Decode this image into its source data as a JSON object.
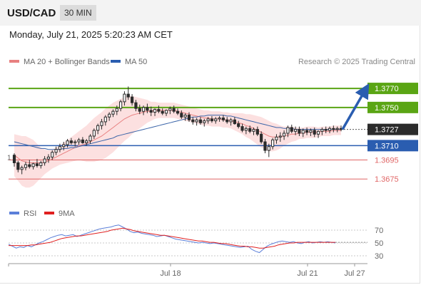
{
  "header": {
    "symbol": "USD/CAD",
    "timeframe": "30 MIN",
    "timestamp": "Monday, July 21, 2025 5:20:23 AM CET"
  },
  "colors": {
    "resistance": "#5aa514",
    "support": "#2a5db0",
    "secondary_level": "#e06666",
    "last_price": "#2b2b2b",
    "ma20": "#e88080",
    "bollinger_fill": "#fbdada",
    "ma50": "#3a64a8",
    "candle": "#2b2b2b",
    "arrow": "#2a5db0",
    "rsi": "#5b7fd9",
    "rsi_ma": "#e02020"
  },
  "chart_data": [
    {
      "type": "candlestick",
      "legend": [
        {
          "name": "MA 20 + Bollinger Bands",
          "color": "#e88080"
        },
        {
          "name": "MA 50",
          "color": "#2a5db0"
        }
      ],
      "source": "Research © 2025 Trading Central",
      "ylim": [
        1.3652,
        1.3788
      ],
      "x_ticks": [
        "Jul 18",
        "Jul 21",
        "Jul 27"
      ],
      "levels": [
        {
          "value": 1.377,
          "label": "1.3770",
          "kind": "resistance"
        },
        {
          "value": 1.375,
          "label": "1.3750",
          "kind": "resistance"
        },
        {
          "value": 1.3727,
          "label": "1.3727",
          "kind": "last"
        },
        {
          "value": 1.371,
          "label": "1.3710",
          "kind": "support"
        },
        {
          "value": 1.3695,
          "label": "1.3695",
          "kind": "minor"
        },
        {
          "value": 1.3675,
          "label": "1.3675",
          "kind": "minor"
        }
      ],
      "forecast_arrow": {
        "from": 1.3727,
        "to": 1.377
      },
      "candles": [
        [
          1.37,
          1.3702,
          1.3688,
          1.3692
        ],
        [
          1.3692,
          1.3694,
          1.3682,
          1.3685
        ],
        [
          1.3685,
          1.3689,
          1.368,
          1.3687
        ],
        [
          1.3687,
          1.3693,
          1.3684,
          1.369
        ],
        [
          1.369,
          1.3695,
          1.3686,
          1.3688
        ],
        [
          1.3688,
          1.3692,
          1.3685,
          1.3691
        ],
        [
          1.3691,
          1.3696,
          1.3687,
          1.3689
        ],
        [
          1.3689,
          1.3694,
          1.3686,
          1.3692
        ],
        [
          1.3692,
          1.3699,
          1.3689,
          1.3696
        ],
        [
          1.3696,
          1.3701,
          1.3692,
          1.3698
        ],
        [
          1.3698,
          1.3705,
          1.3695,
          1.3703
        ],
        [
          1.3703,
          1.3709,
          1.37,
          1.3706
        ],
        [
          1.3706,
          1.3712,
          1.3703,
          1.3709
        ],
        [
          1.3709,
          1.3714,
          1.3705,
          1.3711
        ],
        [
          1.3711,
          1.3717,
          1.3708,
          1.3715
        ],
        [
          1.3715,
          1.3718,
          1.3711,
          1.3713
        ],
        [
          1.3713,
          1.3716,
          1.3709,
          1.3714
        ],
        [
          1.3714,
          1.3718,
          1.3711,
          1.3716
        ],
        [
          1.3716,
          1.3719,
          1.3712,
          1.3713
        ],
        [
          1.3713,
          1.3717,
          1.371,
          1.3715
        ],
        [
          1.3715,
          1.3722,
          1.3712,
          1.372
        ],
        [
          1.372,
          1.3728,
          1.3717,
          1.3726
        ],
        [
          1.3726,
          1.3733,
          1.3722,
          1.3731
        ],
        [
          1.3731,
          1.3738,
          1.3727,
          1.3735
        ],
        [
          1.3735,
          1.3742,
          1.3731,
          1.374
        ],
        [
          1.374,
          1.3745,
          1.3736,
          1.3743
        ],
        [
          1.3743,
          1.3748,
          1.374,
          1.3746
        ],
        [
          1.3746,
          1.3752,
          1.3742,
          1.3749
        ],
        [
          1.3749,
          1.3758,
          1.3746,
          1.3756
        ],
        [
          1.3756,
          1.3767,
          1.3752,
          1.3764
        ],
        [
          1.3764,
          1.3772,
          1.3758,
          1.3761
        ],
        [
          1.3761,
          1.3764,
          1.3752,
          1.3755
        ],
        [
          1.3755,
          1.3758,
          1.3746,
          1.3749
        ],
        [
          1.3749,
          1.3753,
          1.3743,
          1.3746
        ],
        [
          1.3746,
          1.3752,
          1.3742,
          1.375
        ],
        [
          1.375,
          1.3754,
          1.3744,
          1.3747
        ],
        [
          1.3747,
          1.3751,
          1.3741,
          1.3745
        ],
        [
          1.3745,
          1.3749,
          1.3741,
          1.3748
        ],
        [
          1.3748,
          1.3752,
          1.3744,
          1.3746
        ],
        [
          1.3746,
          1.3749,
          1.3742,
          1.3744
        ],
        [
          1.3744,
          1.3748,
          1.3741,
          1.3747
        ],
        [
          1.3747,
          1.3751,
          1.3743,
          1.3749
        ],
        [
          1.3749,
          1.3752,
          1.3744,
          1.3746
        ],
        [
          1.3746,
          1.3749,
          1.3742,
          1.3744
        ],
        [
          1.3744,
          1.3747,
          1.3738,
          1.374
        ],
        [
          1.374,
          1.3744,
          1.3736,
          1.3742
        ],
        [
          1.3742,
          1.3745,
          1.3735,
          1.3737
        ],
        [
          1.3737,
          1.374,
          1.3732,
          1.3735
        ],
        [
          1.3735,
          1.3739,
          1.3731,
          1.3737
        ],
        [
          1.3737,
          1.374,
          1.3732,
          1.3734
        ],
        [
          1.3734,
          1.3738,
          1.373,
          1.3736
        ],
        [
          1.3736,
          1.374,
          1.3733,
          1.3738
        ],
        [
          1.3738,
          1.3741,
          1.3734,
          1.3736
        ],
        [
          1.3736,
          1.374,
          1.3733,
          1.3738
        ],
        [
          1.3738,
          1.3741,
          1.3735,
          1.3739
        ],
        [
          1.3739,
          1.3742,
          1.3735,
          1.3737
        ],
        [
          1.3737,
          1.374,
          1.3733,
          1.3735
        ],
        [
          1.3735,
          1.3739,
          1.3731,
          1.3737
        ],
        [
          1.3737,
          1.374,
          1.3732,
          1.3733
        ],
        [
          1.3733,
          1.3736,
          1.3728,
          1.373
        ],
        [
          1.373,
          1.3733,
          1.3724,
          1.3726
        ],
        [
          1.3726,
          1.373,
          1.3722,
          1.3728
        ],
        [
          1.3728,
          1.3731,
          1.3723,
          1.3725
        ],
        [
          1.3725,
          1.3729,
          1.3721,
          1.3727
        ],
        [
          1.3727,
          1.373,
          1.372,
          1.3722
        ],
        [
          1.3722,
          1.3725,
          1.3712,
          1.3714
        ],
        [
          1.3714,
          1.3717,
          1.3702,
          1.3705
        ],
        [
          1.3705,
          1.3712,
          1.3698,
          1.3709
        ],
        [
          1.3709,
          1.3718,
          1.3706,
          1.3716
        ],
        [
          1.3716,
          1.3722,
          1.3712,
          1.3719
        ],
        [
          1.3719,
          1.3724,
          1.3714,
          1.372
        ],
        [
          1.372,
          1.3726,
          1.3716,
          1.3723
        ],
        [
          1.3723,
          1.3731,
          1.3719,
          1.3729
        ],
        [
          1.3729,
          1.3732,
          1.3723,
          1.3725
        ],
        [
          1.3725,
          1.373,
          1.3721,
          1.3727
        ],
        [
          1.3727,
          1.373,
          1.372,
          1.3723
        ],
        [
          1.3723,
          1.3728,
          1.3719,
          1.3726
        ],
        [
          1.3726,
          1.3729,
          1.3721,
          1.3724
        ],
        [
          1.3724,
          1.3728,
          1.372,
          1.3726
        ],
        [
          1.3726,
          1.3729,
          1.3719,
          1.3722
        ],
        [
          1.3722,
          1.3726,
          1.3718,
          1.3725
        ],
        [
          1.3725,
          1.3729,
          1.3721,
          1.3727
        ],
        [
          1.3727,
          1.373,
          1.3723,
          1.3726
        ],
        [
          1.3726,
          1.373,
          1.3723,
          1.3728
        ],
        [
          1.3728,
          1.3731,
          1.3724,
          1.3727
        ],
        [
          1.3727,
          1.373,
          1.3724,
          1.3728
        ],
        [
          1.3728,
          1.3731,
          1.3725,
          1.3727
        ]
      ],
      "ma20": [
        1.37,
        1.3697,
        1.3694,
        1.3693,
        1.3692,
        1.3692,
        1.3692,
        1.3692,
        1.3693,
        1.3694,
        1.3696,
        1.3698,
        1.37,
        1.3702,
        1.3704,
        1.3706,
        1.3708,
        1.371,
        1.3711,
        1.3712,
        1.3714,
        1.3716,
        1.3718,
        1.372,
        1.3723,
        1.3726,
        1.3729,
        1.3732,
        1.3735,
        1.3738,
        1.374,
        1.3742,
        1.3743,
        1.3744,
        1.3745,
        1.3746,
        1.3746,
        1.3747,
        1.3747,
        1.3747,
        1.3747,
        1.3747,
        1.3747,
        1.3746,
        1.3745,
        1.3744,
        1.3743,
        1.3742,
        1.3741,
        1.374,
        1.3739,
        1.3739,
        1.3738,
        1.3738,
        1.3738,
        1.3737,
        1.3737,
        1.3736,
        1.3735,
        1.3734,
        1.3733,
        1.3731,
        1.373,
        1.3728,
        1.3726,
        1.3724,
        1.3722,
        1.372,
        1.3719,
        1.3719,
        1.3719,
        1.372,
        1.3721,
        1.3722,
        1.3722,
        1.3723,
        1.3723,
        1.3724,
        1.3724,
        1.3724,
        1.3724,
        1.3725,
        1.3725,
        1.3725,
        1.3726,
        1.3726,
        1.3726
      ],
      "ma50": [
        1.3714,
        1.3713,
        1.3712,
        1.3711,
        1.371,
        1.3709,
        1.3708,
        1.3707,
        1.3707,
        1.3706,
        1.3706,
        1.3706,
        1.3706,
        1.3707,
        1.3707,
        1.3708,
        1.3708,
        1.3709,
        1.371,
        1.3711,
        1.3712,
        1.3713,
        1.3714,
        1.3715,
        1.3716,
        1.3717,
        1.3718,
        1.372,
        1.3721,
        1.3722,
        1.3723,
        1.3724,
        1.3725,
        1.3726,
        1.3727,
        1.3728,
        1.3729,
        1.373,
        1.3731,
        1.3732,
        1.3733,
        1.3734,
        1.3735,
        1.3736,
        1.3737,
        1.3738,
        1.3739,
        1.374,
        1.374,
        1.3741,
        1.3741,
        1.3742,
        1.3742,
        1.3742,
        1.3742,
        1.3742,
        1.3741,
        1.3741,
        1.374,
        1.3739,
        1.3738,
        1.3737,
        1.3736,
        1.3735,
        1.3734,
        1.3733,
        1.3732,
        1.3731,
        1.373,
        1.3729,
        1.3729,
        1.3728,
        1.3728,
        1.3728,
        1.3727,
        1.3727,
        1.3727,
        1.3727,
        1.3727,
        1.3727,
        1.3727,
        1.3727,
        1.3727,
        1.3727,
        1.3727,
        1.3727,
        1.3727
      ],
      "band_width": [
        0.0022,
        0.0024,
        0.0026,
        0.0027,
        0.0026,
        0.0024,
        0.002,
        0.0016,
        0.0013,
        0.0011,
        0.001,
        0.001,
        0.001,
        0.0011,
        0.0012,
        0.0013,
        0.0014,
        0.0015,
        0.0017,
        0.0019,
        0.0021,
        0.0023,
        0.0024,
        0.0025,
        0.0026,
        0.0026,
        0.0026,
        0.0025,
        0.0024,
        0.0023,
        0.0022,
        0.002,
        0.0018,
        0.0016,
        0.0014,
        0.0012,
        0.001,
        0.0009,
        0.0008,
        0.0008,
        0.0008,
        0.0008,
        0.0008,
        0.0008,
        0.0008,
        0.0008,
        0.0008,
        0.0008,
        0.0008,
        0.0008,
        0.0008,
        0.0008,
        0.0008,
        0.0008,
        0.0008,
        0.0008,
        0.0008,
        0.0008,
        0.0009,
        0.001,
        0.0011,
        0.0012,
        0.0013,
        0.0014,
        0.0015,
        0.0016,
        0.0016,
        0.0016,
        0.0015,
        0.0014,
        0.0012,
        0.001,
        0.0009,
        0.0008,
        0.0007,
        0.0006,
        0.0006,
        0.0006,
        0.0006,
        0.0006,
        0.0005,
        0.0005,
        0.0005,
        0.0005,
        0.0005,
        0.0005,
        0.0005
      ]
    },
    {
      "type": "line",
      "legend": [
        {
          "name": "RSI",
          "color": "#5b7fd9"
        },
        {
          "name": "9MA",
          "color": "#e02020"
        }
      ],
      "ylim": [
        20,
        80
      ],
      "y_ticks": [
        70,
        50,
        30
      ],
      "series": [
        {
          "name": "RSI",
          "values": [
            48,
            45,
            42,
            44,
            43,
            46,
            44,
            47,
            50,
            52,
            55,
            58,
            60,
            62,
            63,
            61,
            62,
            63,
            60,
            62,
            64,
            66,
            68,
            70,
            72,
            73,
            74,
            75,
            77,
            78,
            75,
            72,
            68,
            66,
            67,
            65,
            64,
            63,
            62,
            60,
            61,
            62,
            60,
            58,
            56,
            55,
            54,
            53,
            52,
            51,
            50,
            51,
            50,
            49,
            50,
            49,
            48,
            47,
            46,
            45,
            44,
            43,
            44,
            45,
            40,
            37,
            35,
            40,
            45,
            48,
            50,
            52,
            53,
            52,
            51,
            52,
            50,
            49,
            51,
            52,
            50,
            51,
            52,
            51,
            52,
            51,
            50
          ]
        },
        {
          "name": "9MA",
          "values": [
            46,
            46,
            46,
            46,
            46,
            46,
            47,
            47,
            48,
            49,
            50,
            51,
            53,
            55,
            57,
            58,
            59,
            60,
            61,
            61,
            62,
            63,
            64,
            65,
            66,
            67,
            68,
            70,
            71,
            72,
            73,
            72,
            71,
            69,
            68,
            67,
            66,
            65,
            64,
            63,
            62,
            62,
            61,
            60,
            59,
            58,
            57,
            56,
            55,
            54,
            53,
            53,
            52,
            51,
            51,
            50,
            49,
            49,
            48,
            47,
            46,
            45,
            45,
            44,
            44,
            43,
            42,
            42,
            43,
            44,
            45,
            47,
            48,
            49,
            50,
            50,
            51,
            51,
            51,
            51,
            51,
            51,
            51,
            51,
            51,
            51,
            51
          ]
        }
      ]
    }
  ]
}
